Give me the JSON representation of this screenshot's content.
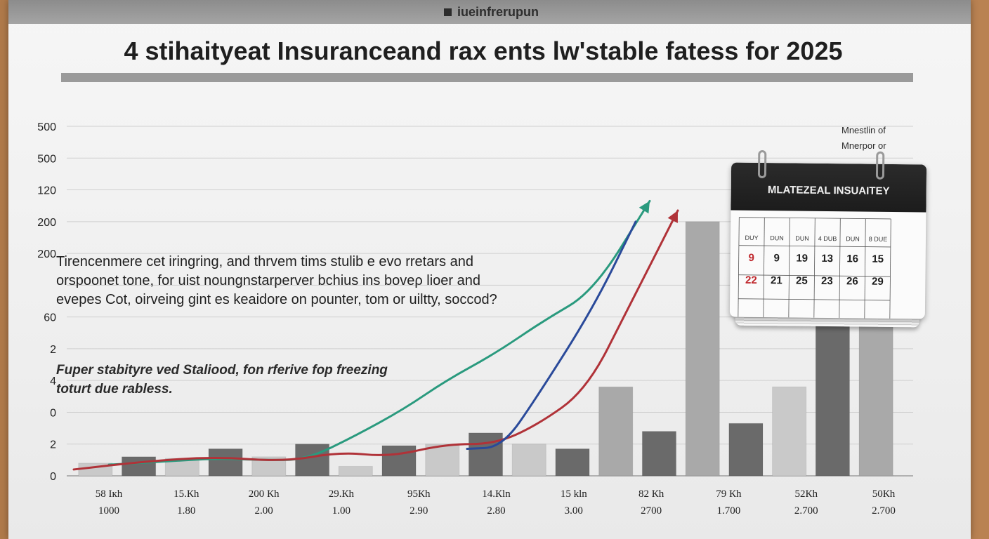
{
  "brand": {
    "text": "iueinfrerupun"
  },
  "title": "4 stihaityeat Insuranceand rax ents lw'stable fatess for 2025",
  "annotations": {
    "main": [
      "Tirencenmere cet iringring, and thrvem tims stulib e evo rretars and",
      "orspoonet tone, for uist noungnstarperver bchius ins boveρ lioer and",
      "evepes Cot, oirveing gint es keaidore on pounter, tom or uiltty, soccod?"
    ],
    "secondary": [
      "Fuper stabityre ved Staliood, fon rferive fop freezing",
      "toturt due rabless."
    ]
  },
  "legend_note": [
    "Mnestlin of",
    "Mnerpor or"
  ],
  "calendar": {
    "header": "MLATEZEAL INSUAITEY",
    "row_labels": [
      "DUY",
      "DUN",
      "DUN",
      "4 DUB",
      "DUN",
      "8 DUE"
    ],
    "rows": [
      [
        {
          "text": "9",
          "color": "#c0282d"
        },
        {
          "text": "9",
          "color": "#1e1e1e"
        },
        {
          "text": "19",
          "color": "#1e1e1e"
        },
        {
          "text": "13",
          "color": "#1e1e1e"
        },
        {
          "text": "16",
          "color": "#1e1e1e"
        },
        {
          "text": "15",
          "color": "#1e1e1e"
        }
      ],
      [
        {
          "text": "22",
          "color": "#c0282d"
        },
        {
          "text": "21",
          "color": "#1e1e1e"
        },
        {
          "text": "25",
          "color": "#1e1e1e"
        },
        {
          "text": "23",
          "color": "#1e1e1e"
        },
        {
          "text": "26",
          "color": "#1e1e1e"
        },
        {
          "text": "29",
          "color": "#1e1e1e"
        }
      ]
    ],
    "small_marks": [
      "8",
      "8",
      "8"
    ]
  },
  "chart_data": {
    "type": "bar",
    "title": "4 stihaityeat Insuranceand rax ents lw'stable fatess for 2025",
    "y_tick_labels": [
      "500",
      "500",
      "120",
      "200",
      "200",
      "",
      "60",
      "2",
      "4",
      "0",
      "2",
      "0"
    ],
    "categories": [
      {
        "top": "58 Ікh",
        "bottom": "1000"
      },
      {
        "top": "15.Кh",
        "bottom": "1.80"
      },
      {
        "top": "200 Кh",
        "bottom": "2.00"
      },
      {
        "top": "29.Кh",
        "bottom": "1.00"
      },
      {
        "top": "95Кh",
        "bottom": "2.90"
      },
      {
        "top": "14.Кln",
        "bottom": "2.80"
      },
      {
        "top": "15 kln",
        "bottom": "3.00"
      },
      {
        "top": "82 Кh",
        "bottom": "2700"
      },
      {
        "top": "79 Кh",
        "bottom": "1.700"
      },
      {
        "top": "52Кh",
        "bottom": "2.700"
      },
      {
        "top": "50Кh",
        "bottom": "2.700"
      }
    ],
    "grid_levels": 12,
    "bars": [
      {
        "level": 0.4,
        "shade": "light"
      },
      {
        "level": 0.6,
        "shade": "dark"
      },
      {
        "level": 0.55,
        "shade": "light"
      },
      {
        "level": 0.85,
        "shade": "dark"
      },
      {
        "level": 0.6,
        "shade": "light"
      },
      {
        "level": 1.0,
        "shade": "dark"
      },
      {
        "level": 0.3,
        "shade": "light"
      },
      {
        "level": 0.95,
        "shade": "dark"
      },
      {
        "level": 1.0,
        "shade": "light"
      },
      {
        "level": 1.35,
        "shade": "dark"
      },
      {
        "level": 1.0,
        "shade": "light"
      },
      {
        "level": 0.85,
        "shade": "dark"
      },
      {
        "level": 2.8,
        "shade": "mid"
      },
      {
        "level": 1.4,
        "shade": "dark"
      },
      {
        "level": 8.0,
        "shade": "mid"
      },
      {
        "level": 1.65,
        "shade": "dark"
      },
      {
        "level": 2.8,
        "shade": "light"
      },
      {
        "level": 5.05,
        "shade": "dark"
      },
      {
        "level": 4.9,
        "shade": "mid"
      }
    ],
    "series": [
      {
        "color": "#2a9a7e",
        "points": [
          [
            0.5,
            0.35
          ],
          [
            1.3,
            0.45
          ],
          [
            2.0,
            0.55
          ],
          [
            2.7,
            0.5
          ],
          [
            3.3,
            0.5
          ],
          [
            4.0,
            1.25
          ],
          [
            4.7,
            2.1
          ],
          [
            5.3,
            3.0
          ],
          [
            6.0,
            3.85
          ],
          [
            6.7,
            4.9
          ],
          [
            7.4,
            5.8
          ],
          [
            8.2,
            8.65
          ]
        ]
      },
      {
        "color": "#b03238",
        "points": [
          [
            0.0,
            0.2
          ],
          [
            1.0,
            0.45
          ],
          [
            2.0,
            0.6
          ],
          [
            3.0,
            0.45
          ],
          [
            3.8,
            0.75
          ],
          [
            4.5,
            0.6
          ],
          [
            5.3,
            1.0
          ],
          [
            6.0,
            1.0
          ],
          [
            6.6,
            1.6
          ],
          [
            7.3,
            2.7
          ],
          [
            7.9,
            5.3
          ],
          [
            8.6,
            8.35
          ]
        ]
      },
      {
        "color": "#2a4a9a",
        "points": [
          [
            5.6,
            0.85
          ],
          [
            6.1,
            0.9
          ],
          [
            6.6,
            2.5
          ],
          [
            7.4,
            5.3
          ],
          [
            8.0,
            8.0
          ]
        ]
      }
    ]
  }
}
